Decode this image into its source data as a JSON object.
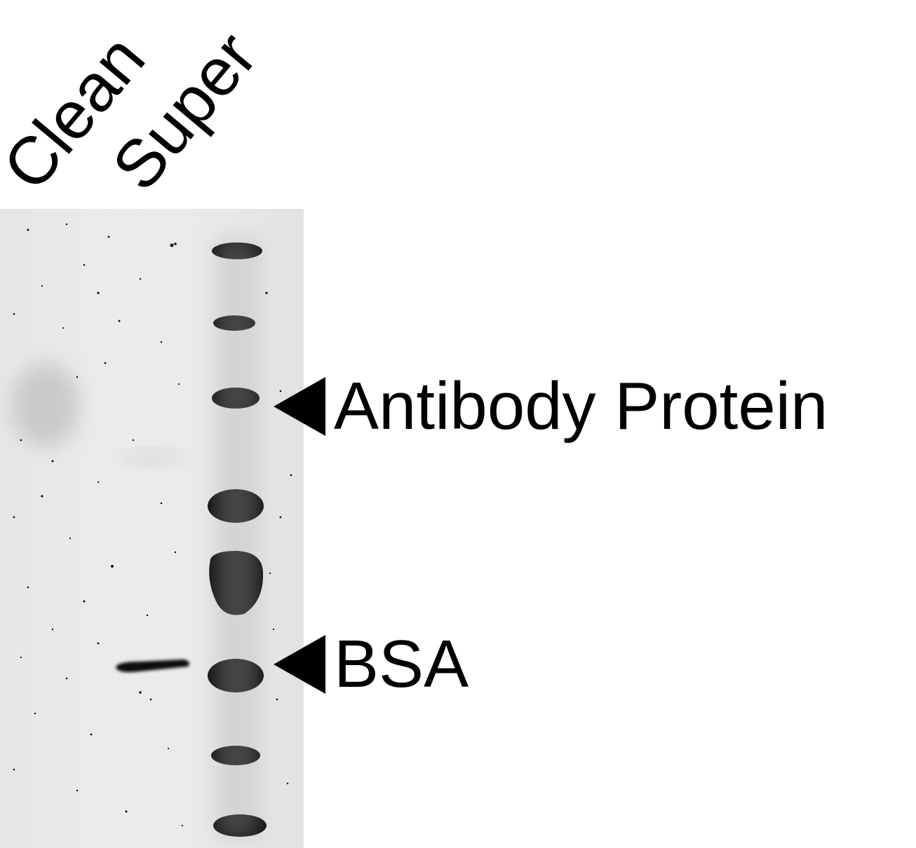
{
  "lanes": {
    "clean_label": "Clean",
    "super_label": "Super"
  },
  "bands": {
    "antibody_label": "Antibody Protein",
    "bsa_label": "BSA"
  },
  "colors": {
    "gel_background": "#e8e8e8",
    "band": "#0a0a0a",
    "text": "#000000"
  }
}
